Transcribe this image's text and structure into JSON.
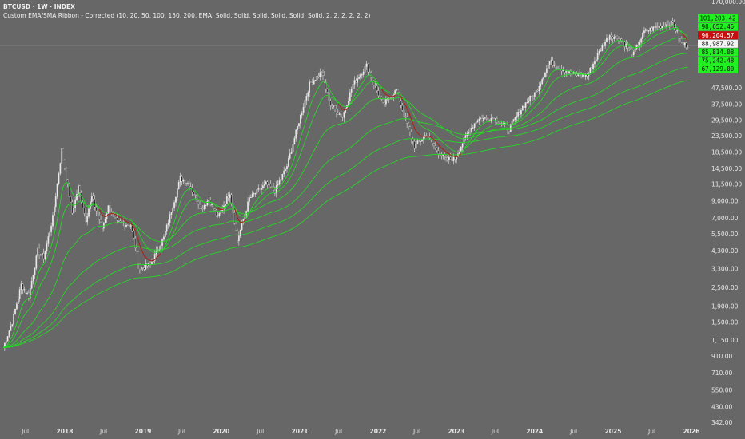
{
  "header": {
    "symbol": "BTCUSD · 1W · INDEX",
    "indicator": "Custom EMA/SMA Ribbon - Corrected (10, 20, 50, 100, 150, 200, EMA, Solid, Solid, Solid, Solid, Solid, Solid, 2, 2, 2, 2, 2, 2)"
  },
  "colors": {
    "background": "#676767",
    "candle": "#e8e8e8",
    "ribbon_bull": "#22dd22",
    "ribbon_bear": "#b01e1e",
    "badge_green": "#21f021",
    "badge_red": "#c50f0f",
    "badge_white": "#f4f4f4"
  },
  "chart_data": {
    "type": "line",
    "title": "",
    "xlabel": "",
    "ylabel": "",
    "y_scale": "log",
    "ylim": [
      342,
      170000
    ],
    "xlim": [
      "2017-03-20",
      "2026-01-05"
    ],
    "grid": false,
    "legend": "none",
    "y_ticks": [
      170000,
      47500,
      37500,
      29500,
      23500,
      18500,
      14500,
      11500,
      9000,
      7000,
      5500,
      4300,
      3300,
      2500,
      1900,
      1500,
      1150,
      910,
      710,
      550,
      430,
      342
    ],
    "y_tick_labels": [
      "170,000.00",
      "47,500.00",
      "37,500.00",
      "29,500.00",
      "23,500.00",
      "18,500.00",
      "14,500.00",
      "11,500.00",
      "9,000.00",
      "7,000.00",
      "5,500.00",
      "4,300.00",
      "3,300.00",
      "2,500.00",
      "1,900.00",
      "1,500.00",
      "1,150.00",
      "910.00",
      "710.00",
      "550.00",
      "430.00",
      "342.00"
    ],
    "x_ticks": [
      {
        "label": "Jul",
        "date": "2017-07-01",
        "bold": false
      },
      {
        "label": "2018",
        "date": "2018-01-01",
        "bold": true
      },
      {
        "label": "Jul",
        "date": "2018-07-01",
        "bold": false
      },
      {
        "label": "2019",
        "date": "2019-01-01",
        "bold": true
      },
      {
        "label": "Jul",
        "date": "2019-07-01",
        "bold": false
      },
      {
        "label": "2020",
        "date": "2020-01-01",
        "bold": true
      },
      {
        "label": "Jul",
        "date": "2020-07-01",
        "bold": false
      },
      {
        "label": "2021",
        "date": "2021-01-01",
        "bold": true
      },
      {
        "label": "Jul",
        "date": "2021-07-01",
        "bold": false
      },
      {
        "label": "2022",
        "date": "2022-01-01",
        "bold": true
      },
      {
        "label": "Jul",
        "date": "2022-07-01",
        "bold": false
      },
      {
        "label": "2023",
        "date": "2023-01-01",
        "bold": true
      },
      {
        "label": "Jul",
        "date": "2023-07-01",
        "bold": false
      },
      {
        "label": "2024",
        "date": "2024-01-01",
        "bold": true
      },
      {
        "label": "Jul",
        "date": "2024-07-01",
        "bold": false
      },
      {
        "label": "2025",
        "date": "2025-01-01",
        "bold": true
      },
      {
        "label": "Jul",
        "date": "2025-07-01",
        "bold": false
      },
      {
        "label": "2026",
        "date": "2026-01-01",
        "bold": true
      }
    ],
    "price_path": [
      [
        "2017-03-20",
        1030
      ],
      [
        "2017-05-01",
        1500
      ],
      [
        "2017-06-12",
        2600
      ],
      [
        "2017-07-17",
        2200
      ],
      [
        "2017-08-28",
        4300
      ],
      [
        "2017-09-25",
        3900
      ],
      [
        "2017-11-06",
        7000
      ],
      [
        "2017-12-18",
        19000
      ],
      [
        "2018-02-05",
        7500
      ],
      [
        "2018-03-05",
        11000
      ],
      [
        "2018-04-09",
        6800
      ],
      [
        "2018-05-07",
        9500
      ],
      [
        "2018-06-25",
        6000
      ],
      [
        "2018-07-23",
        8200
      ],
      [
        "2018-09-03",
        6500
      ],
      [
        "2018-11-05",
        6300
      ],
      [
        "2018-12-17",
        3300
      ],
      [
        "2019-02-04",
        3500
      ],
      [
        "2019-04-08",
        5200
      ],
      [
        "2019-06-24",
        12500
      ],
      [
        "2019-08-05",
        11500
      ],
      [
        "2019-09-30",
        8000
      ],
      [
        "2019-11-04",
        9200
      ],
      [
        "2019-12-16",
        7000
      ],
      [
        "2020-02-10",
        10200
      ],
      [
        "2020-03-16",
        5000
      ],
      [
        "2020-05-11",
        9300
      ],
      [
        "2020-07-27",
        11500
      ],
      [
        "2020-09-07",
        10400
      ],
      [
        "2020-11-02",
        15000
      ],
      [
        "2020-12-28",
        29000
      ],
      [
        "2021-02-15",
        50000
      ],
      [
        "2021-04-12",
        60000
      ],
      [
        "2021-05-24",
        37000
      ],
      [
        "2021-07-19",
        31000
      ],
      [
        "2021-09-06",
        50000
      ],
      [
        "2021-11-08",
        66000
      ],
      [
        "2022-01-24",
        37000
      ],
      [
        "2022-03-28",
        46000
      ],
      [
        "2022-05-09",
        30000
      ],
      [
        "2022-06-20",
        20000
      ],
      [
        "2022-08-15",
        24000
      ],
      [
        "2022-09-26",
        19500
      ],
      [
        "2022-11-14",
        16500
      ],
      [
        "2022-12-26",
        16800
      ],
      [
        "2023-02-20",
        24000
      ],
      [
        "2023-04-10",
        30000
      ],
      [
        "2023-06-26",
        30500
      ],
      [
        "2023-09-04",
        26000
      ],
      [
        "2023-11-06",
        36000
      ],
      [
        "2024-01-08",
        45000
      ],
      [
        "2024-03-11",
        70000
      ],
      [
        "2024-05-06",
        63000
      ],
      [
        "2024-07-01",
        58000
      ],
      [
        "2024-09-02",
        57000
      ],
      [
        "2024-11-11",
        88000
      ],
      [
        "2024-12-16",
        104000
      ],
      [
        "2025-02-03",
        98000
      ],
      [
        "2025-04-07",
        78000
      ],
      [
        "2025-05-26",
        109000
      ],
      [
        "2025-08-11",
        119000
      ],
      [
        "2025-10-06",
        124000
      ],
      [
        "2025-11-17",
        92000
      ],
      [
        "2025-12-15",
        88000
      ]
    ],
    "series": [
      {
        "period": 10
      },
      {
        "period": 20
      },
      {
        "period": 50
      },
      {
        "period": 100
      },
      {
        "period": 150
      },
      {
        "period": 200
      }
    ],
    "price_labels": [
      {
        "label": "101,283.42",
        "value": 101283.42,
        "style": "green"
      },
      {
        "label": "98,652.45",
        "value": 98652.45,
        "style": "green"
      },
      {
        "label": "96,204.57",
        "value": 96204.57,
        "style": "red"
      },
      {
        "label": "88,987.92",
        "value": 88987.92,
        "style": "white"
      },
      {
        "label": "85,814.08",
        "value": 85814.08,
        "style": "green"
      },
      {
        "label": "75,242.48",
        "value": 75242.48,
        "style": "green"
      },
      {
        "label": "67,129.00",
        "value": 67129.0,
        "style": "green"
      }
    ],
    "current_price": 88987.92
  }
}
